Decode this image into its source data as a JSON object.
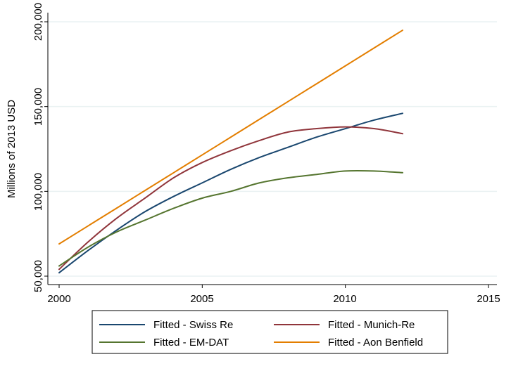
{
  "chart_data": {
    "type": "line",
    "title": "",
    "xlabel": "",
    "ylabel": "Millions of 2013 USD",
    "xlim": [
      2000,
      2015
    ],
    "ylim": [
      50000,
      205000
    ],
    "xticks": [
      2000,
      2005,
      2010,
      2015
    ],
    "xtick_labels": [
      "2000",
      "2005",
      "2010",
      "2015"
    ],
    "yticks": [
      50000,
      100000,
      150000,
      200000
    ],
    "ytick_labels": [
      "50,000",
      "100,000",
      "150,000",
      "200,000"
    ],
    "grid": "horizontal",
    "legend_position": "bottom",
    "x": [
      2000,
      2001,
      2002,
      2003,
      2004,
      2005,
      2006,
      2007,
      2008,
      2009,
      2010,
      2011,
      2012
    ],
    "series": [
      {
        "name": "Fitted - Swiss Re",
        "color": "#1a476f",
        "values": [
          52000,
          65000,
          77000,
          88000,
          97000,
          105000,
          113000,
          120000,
          126000,
          132000,
          137000,
          142000,
          146000
        ]
      },
      {
        "name": "Fitted - Munich-Re",
        "color": "#90353b",
        "values": [
          54000,
          70000,
          84000,
          96000,
          108000,
          117000,
          124000,
          130000,
          135000,
          137000,
          138000,
          137000,
          134000
        ]
      },
      {
        "name": "Fitted - EM-DAT",
        "color": "#55752f",
        "values": [
          56000,
          67000,
          76000,
          83000,
          90000,
          96000,
          100000,
          105000,
          108000,
          110000,
          112000,
          112000,
          111000
        ]
      },
      {
        "name": "Fitted - Aon Benfield",
        "color": "#e37e00",
        "values": [
          69000,
          79500,
          90000,
          100500,
          111000,
          121500,
          132000,
          142500,
          153000,
          163500,
          174000,
          184500,
          195000
        ]
      }
    ]
  }
}
